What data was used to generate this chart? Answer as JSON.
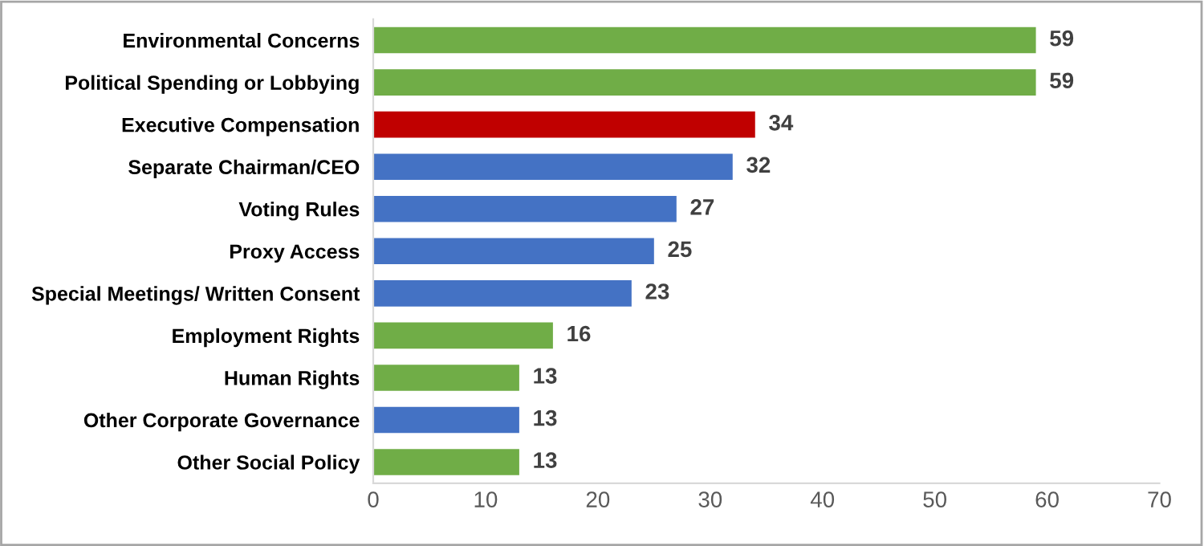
{
  "chart_data": {
    "type": "bar",
    "orientation": "horizontal",
    "categories": [
      "Environmental Concerns",
      "Political Spending or Lobbying",
      "Executive Compensation",
      "Separate Chairman/CEO",
      "Voting Rules",
      "Proxy Access",
      "Special Meetings/ Written Consent",
      "Employment Rights",
      "Human Rights",
      "Other Corporate Governance",
      "Other Social Policy"
    ],
    "values": [
      59,
      59,
      34,
      32,
      27,
      25,
      23,
      16,
      13,
      13,
      13
    ],
    "colors": [
      "#70ad47",
      "#70ad47",
      "#c00000",
      "#4472c4",
      "#4472c4",
      "#4472c4",
      "#4472c4",
      "#70ad47",
      "#70ad47",
      "#4472c4",
      "#70ad47"
    ],
    "xlim": [
      0,
      70
    ],
    "xticks": [
      0,
      10,
      20,
      30,
      40,
      50,
      60,
      70
    ],
    "data_labels": true,
    "grid": false,
    "legend": false
  }
}
